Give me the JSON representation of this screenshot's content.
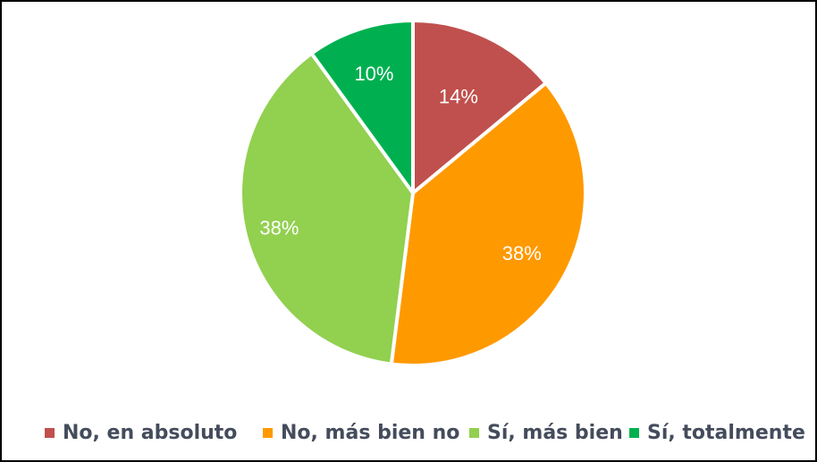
{
  "chart_data": {
    "type": "pie",
    "title": "",
    "categories": [
      "No, en absoluto",
      "No, más bien no",
      "Sí, más bien",
      "Sí, totalmente"
    ],
    "values": [
      14,
      38,
      38,
      10
    ],
    "labels": [
      "14%",
      "38%",
      "38%",
      "10%"
    ],
    "colors": [
      "#c0504d",
      "#ff9900",
      "#92d050",
      "#00b050"
    ],
    "start_angle_deg": 0,
    "direction": "clockwise",
    "legend_position": "bottom"
  },
  "legend": {
    "items": [
      {
        "label": "No, en absoluto",
        "color": "#c0504d"
      },
      {
        "label": "No, más bien no",
        "color": "#ff9900"
      },
      {
        "label": "Sí, más bien",
        "color": "#92d050"
      },
      {
        "label": "Sí, totalmente",
        "color": "#00b050"
      }
    ]
  }
}
